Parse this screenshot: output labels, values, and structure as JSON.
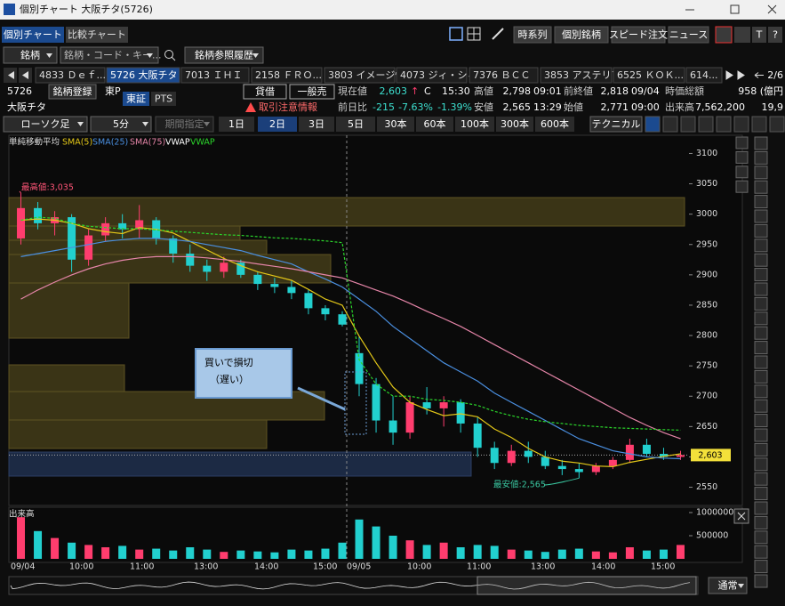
{
  "window": {
    "title": "個別チャート 大阪チタ(5726)"
  },
  "tabs": [
    "個別チャート",
    "比較チャート"
  ],
  "top_buttons": [
    "時系列",
    "個別銘柄",
    "スピード注文",
    "ニュース"
  ],
  "top_icons": [
    "T",
    "?"
  ],
  "search": {
    "symbol_select": "銘柄",
    "placeholder": "銘柄・コード・キー...",
    "history": "銘柄参照履歴"
  },
  "ticker_tabs": [
    "4833 Ｄｅｆ...",
    "5726 大阪チタ",
    "7013 ＩＨＩ",
    "2158 ＦＲＯ...",
    "3803 イメージ情",
    "4073 ジィ・シィ...",
    "7376 ＢＣＣ",
    "3853 アステリア",
    "6525 ＫＯＫ...",
    "614..."
  ],
  "ticker_page": "2/6",
  "quote": {
    "code": "5726",
    "register": "銘柄登録",
    "market": "東P",
    "exchange": "東証",
    "pts": "PTS",
    "name": "大阪チタ",
    "margin": "貸借",
    "general": "一般売",
    "warning": "取引注意情報",
    "price_label": "現在値",
    "price": "2,603",
    "arrow": "↑",
    "price_flag": "C",
    "price_time": "15:30",
    "high_label": "高値",
    "high": "2,798",
    "high_time": "09:01",
    "prev_close_label": "前終値",
    "prev_close": "2,818",
    "prev_close_date": "09/04",
    "market_cap_label": "時価総額",
    "market_cap": "958 (億円",
    "change_label": "前日比",
    "change": "-215",
    "change_pct": "-7.63%",
    "change_pct2": "-1.39%",
    "low_label": "安値",
    "low": "2,565",
    "low_time": "13:29",
    "open_label": "始値",
    "open": "2,771",
    "open_time": "09:00",
    "volume_label": "出来高",
    "volume": "7,562,200",
    "volume2": "19,9"
  },
  "controls": {
    "chart_type": "ローソク足",
    "interval": "5分",
    "period": "期間指定",
    "ranges": [
      "1日",
      "2日",
      "3日",
      "5日",
      "30本",
      "60本",
      "100本",
      "300本",
      "600本"
    ],
    "active_range": 1,
    "technical": "テクニカル"
  },
  "legend": {
    "title": "単純移動平均",
    "vwap_label": "VWAP"
  },
  "price_chart": {
    "ylim": [
      2520,
      3130
    ],
    "yticks": [
      2550,
      2600,
      2650,
      2700,
      2750,
      2800,
      2850,
      2900,
      2950,
      3000,
      3050,
      3100
    ],
    "up_color": "#ff3d6e",
    "down_color": "#22d0cf",
    "candles": [
      [
        2960,
        3035,
        2950,
        3010
      ],
      [
        3010,
        3020,
        2975,
        2985
      ],
      [
        2985,
        3005,
        2965,
        2995
      ],
      [
        2995,
        3000,
        2905,
        2925
      ],
      [
        2925,
        2975,
        2915,
        2965
      ],
      [
        2965,
        2995,
        2955,
        2985
      ],
      [
        2985,
        3000,
        2960,
        2975
      ],
      [
        2975,
        3015,
        2960,
        2990
      ],
      [
        2990,
        2995,
        2950,
        2960
      ],
      [
        2960,
        2965,
        2920,
        2935
      ],
      [
        2935,
        2950,
        2905,
        2915
      ],
      [
        2915,
        2925,
        2890,
        2905
      ],
      [
        2905,
        2930,
        2895,
        2920
      ],
      [
        2920,
        2925,
        2895,
        2900
      ],
      [
        2900,
        2905,
        2875,
        2885
      ],
      [
        2885,
        2895,
        2870,
        2880
      ],
      [
        2880,
        2890,
        2860,
        2870
      ],
      [
        2870,
        2875,
        2835,
        2845
      ],
      [
        2845,
        2850,
        2825,
        2835
      ],
      [
        2835,
        2840,
        2815,
        2818
      ],
      [
        2771,
        2798,
        2700,
        2720
      ],
      [
        2720,
        2730,
        2640,
        2660
      ],
      [
        2660,
        2700,
        2620,
        2640
      ],
      [
        2640,
        2700,
        2630,
        2690
      ],
      [
        2690,
        2715,
        2670,
        2680
      ],
      [
        2680,
        2700,
        2650,
        2690
      ],
      [
        2690,
        2695,
        2640,
        2655
      ],
      [
        2655,
        2665,
        2600,
        2615
      ],
      [
        2615,
        2625,
        2580,
        2590
      ],
      [
        2590,
        2620,
        2585,
        2610
      ],
      [
        2610,
        2625,
        2590,
        2600
      ],
      [
        2600,
        2610,
        2580,
        2585
      ],
      [
        2585,
        2595,
        2570,
        2580
      ],
      [
        2580,
        2590,
        2565,
        2575
      ],
      [
        2575,
        2590,
        2570,
        2585
      ],
      [
        2585,
        2600,
        2580,
        2595
      ],
      [
        2595,
        2630,
        2590,
        2620
      ],
      [
        2620,
        2630,
        2600,
        2605
      ],
      [
        2605,
        2615,
        2595,
        2600
      ],
      [
        2600,
        2610,
        2595,
        2603
      ]
    ],
    "series": [
      {
        "name": "SMA(5)",
        "color": "#e3c718",
        "values": [
          2990,
          2992,
          2990,
          2985,
          2976,
          2971,
          2968,
          2978,
          2975,
          2969,
          2955,
          2941,
          2927,
          2915,
          2905,
          2898,
          2891,
          2876,
          2860,
          2850,
          2799,
          2755,
          2715,
          2690,
          2678,
          2668,
          2671,
          2666,
          2646,
          2632,
          2614,
          2600,
          2593,
          2590,
          2585,
          2584,
          2591,
          2596,
          2601,
          2605
        ]
      },
      {
        "name": "SMA(25)",
        "color": "#4a8fe0",
        "values": [
          2930,
          2935,
          2940,
          2945,
          2950,
          2955,
          2958,
          2960,
          2960,
          2958,
          2955,
          2950,
          2945,
          2940,
          2932,
          2925,
          2918,
          2905,
          2893,
          2880,
          2860,
          2840,
          2815,
          2795,
          2775,
          2755,
          2740,
          2725,
          2705,
          2690,
          2675,
          2660,
          2645,
          2630,
          2620,
          2610,
          2605,
          2600,
          2598,
          2597
        ]
      },
      {
        "name": "SMA(75)",
        "color": "#e585a8",
        "values": [
          2860,
          2875,
          2888,
          2900,
          2910,
          2918,
          2924,
          2928,
          2930,
          2930,
          2930,
          2928,
          2925,
          2922,
          2918,
          2914,
          2910,
          2905,
          2900,
          2895,
          2885,
          2875,
          2865,
          2853,
          2840,
          2828,
          2815,
          2800,
          2785,
          2770,
          2755,
          2740,
          2725,
          2710,
          2695,
          2680,
          2665,
          2652,
          2640,
          2630
        ]
      },
      {
        "name": "VWAP",
        "color": "#2bd62b",
        "dashed": true,
        "values": [
          2990,
          2995,
          2993,
          2985,
          2980,
          2978,
          2976,
          2976,
          2974,
          2972,
          2970,
          2968,
          2966,
          2965,
          2963,
          2961,
          2960,
          2958,
          2956,
          2953,
          2760,
          2720,
          2700,
          2700,
          2695,
          2693,
          2690,
          2685,
          2675,
          2668,
          2662,
          2658,
          2655,
          2652,
          2650,
          2648,
          2647,
          2646,
          2645,
          2644
        ]
      }
    ],
    "last": {
      "value": 2603,
      "label": "2,603"
    },
    "high_marker": "最高値:3,035",
    "low_marker": "最安値:2,565",
    "callout": [
      "買いで損切",
      "（遅い）"
    ]
  },
  "volume_chart": {
    "label": "出来高",
    "ylim": [
      0,
      1000000
    ],
    "yticks": [
      500000,
      1000000
    ],
    "values": [
      900000,
      600000,
      450000,
      350000,
      300000,
      250000,
      280000,
      200000,
      220000,
      180000,
      250000,
      200000,
      150000,
      180000,
      160000,
      140000,
      200000,
      180000,
      220000,
      350000,
      850000,
      700000,
      500000,
      400000,
      300000,
      350000,
      250000,
      300000,
      280000,
      200000,
      180000,
      150000,
      200000,
      220000,
      160000,
      140000,
      250000,
      180000,
      200000,
      300000
    ]
  },
  "time_labels": [
    "09/04",
    "10:00",
    "11:00",
    "13:00",
    "14:00",
    "15:00",
    "09/05",
    "10:00",
    "11:00",
    "13:00",
    "14:00",
    "15:00"
  ],
  "scroll_mode": "通常"
}
